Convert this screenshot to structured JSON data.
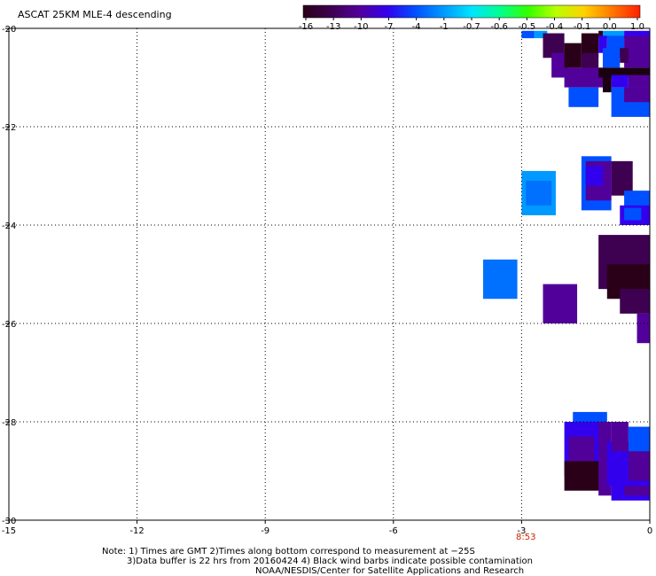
{
  "title": "ASCAT 25KM MLE-4 descending",
  "colorbar": {
    "labels": [
      "-16",
      "-13",
      "-10",
      "-7",
      "-4",
      "-1",
      "-0.7",
      "-0.6",
      "-0.5",
      "-0.4",
      "-0.1",
      "0.0",
      "1.0"
    ],
    "colors": [
      "#2a0018",
      "#3e0050",
      "#52009a",
      "#3300ee",
      "#0050ff",
      "#0099ff",
      "#00e4ff",
      "#00ff90",
      "#33ff00",
      "#b8ff00",
      "#ffd200",
      "#ff7800",
      "#ff2000"
    ]
  },
  "chart_data": {
    "type": "heatmap",
    "title": "ASCAT 25KM MLE-4 descending",
    "xlim": [
      -15,
      0
    ],
    "ylim": [
      -30,
      -20
    ],
    "x_ticks": [
      -15,
      -12,
      -9,
      -6,
      -3,
      0
    ],
    "y_ticks": [
      -20,
      -22,
      -24,
      -26,
      -28,
      -30
    ],
    "x_tick_labels": [
      "-15",
      "-12",
      "-9",
      "-6",
      "-3",
      "0"
    ],
    "y_tick_labels": [
      "-20",
      "-22",
      "-24",
      "-26",
      "-28",
      "-30"
    ],
    "grid": true,
    "cells": [
      {
        "x0": -3.0,
        "x1": -2.7,
        "y0": -20.2,
        "y1": -20.05,
        "c": "#0050ff"
      },
      {
        "x0": -2.7,
        "x1": -2.4,
        "y0": -20.2,
        "y1": -20.05,
        "c": "#0099ff"
      },
      {
        "x0": -2.5,
        "x1": -2.0,
        "y0": -20.6,
        "y1": -20.1,
        "c": "#3e0050"
      },
      {
        "x0": -2.3,
        "x1": -1.9,
        "y0": -21.0,
        "y1": -20.5,
        "c": "#52009a"
      },
      {
        "x0": -2.0,
        "x1": -1.6,
        "y0": -20.8,
        "y1": -20.3,
        "c": "#2a0018"
      },
      {
        "x0": -1.6,
        "x1": -1.2,
        "y0": -20.6,
        "y1": -20.1,
        "c": "#2a0018"
      },
      {
        "x0": -1.2,
        "x1": -1.1,
        "y0": -20.2,
        "y1": -20.05,
        "c": "#2a0018"
      },
      {
        "x0": -1.1,
        "x1": -0.6,
        "y0": -20.2,
        "y1": -20.05,
        "c": "#0099ff"
      },
      {
        "x0": -0.6,
        "x1": 0.0,
        "y0": -20.2,
        "y1": -20.05,
        "c": "#3300ee"
      },
      {
        "x0": -1.6,
        "x1": -1.2,
        "y0": -20.9,
        "y1": -20.5,
        "c": "#3e0050"
      },
      {
        "x0": -1.2,
        "x1": -1.0,
        "y0": -20.5,
        "y1": -20.15,
        "c": "#3300ee"
      },
      {
        "x0": -1.0,
        "x1": -0.6,
        "y0": -20.6,
        "y1": -20.15,
        "c": "#0050ff"
      },
      {
        "x0": -0.6,
        "x1": 0.0,
        "y0": -20.8,
        "y1": -20.15,
        "c": "#52009a"
      },
      {
        "x0": -1.1,
        "x1": -0.7,
        "y0": -20.8,
        "y1": -20.4,
        "c": "#0050ff"
      },
      {
        "x0": -0.7,
        "x1": -0.5,
        "y0": -20.7,
        "y1": -20.4,
        "c": "#3e0050"
      },
      {
        "x0": -2.0,
        "x1": -1.0,
        "y0": -21.2,
        "y1": -20.8,
        "c": "#52009a"
      },
      {
        "x0": -1.2,
        "x1": 0.0,
        "y0": -21.0,
        "y1": -20.8,
        "c": "#1a0010"
      },
      {
        "x0": -1.1,
        "x1": -0.9,
        "y0": -21.3,
        "y1": -20.95,
        "c": "#1a0010"
      },
      {
        "x0": -0.9,
        "x1": -0.5,
        "y0": -21.2,
        "y1": -20.95,
        "c": "#3300ee"
      },
      {
        "x0": -0.5,
        "x1": 0.0,
        "y0": -21.3,
        "y1": -20.95,
        "c": "#52009a"
      },
      {
        "x0": -1.9,
        "x1": -1.2,
        "y0": -21.6,
        "y1": -21.2,
        "c": "#0050ff"
      },
      {
        "x0": -0.9,
        "x1": 0.0,
        "y0": -21.8,
        "y1": -21.2,
        "c": "#0050ff"
      },
      {
        "x0": -0.6,
        "x1": 0.0,
        "y0": -21.5,
        "y1": -21.2,
        "c": "#52009a"
      },
      {
        "x0": -3.0,
        "x1": -2.2,
        "y0": -23.8,
        "y1": -22.9,
        "c": "#0099ff"
      },
      {
        "x0": -2.9,
        "x1": -2.3,
        "y0": -23.6,
        "y1": -23.1,
        "c": "#0070ff"
      },
      {
        "x0": -1.6,
        "x1": -0.9,
        "y0": -23.7,
        "y1": -22.6,
        "c": "#0050ff"
      },
      {
        "x0": -1.5,
        "x1": -0.9,
        "y0": -23.5,
        "y1": -22.7,
        "c": "#52009a"
      },
      {
        "x0": -1.5,
        "x1": -1.1,
        "y0": -23.2,
        "y1": -22.8,
        "c": "#3300ee"
      },
      {
        "x0": -0.9,
        "x1": -0.4,
        "y0": -23.4,
        "y1": -22.7,
        "c": "#3e0050"
      },
      {
        "x0": -0.6,
        "x1": 0.0,
        "y0": -23.7,
        "y1": -23.3,
        "c": "#0050ff"
      },
      {
        "x0": -0.7,
        "x1": 0.0,
        "y0": -24.0,
        "y1": -23.6,
        "c": "#3300ee"
      },
      {
        "x0": -0.6,
        "x1": -0.2,
        "y0": -23.9,
        "y1": -23.65,
        "c": "#0050ff"
      },
      {
        "x0": -1.2,
        "x1": 0.0,
        "y0": -25.3,
        "y1": -24.2,
        "c": "#3e0050"
      },
      {
        "x0": -1.0,
        "x1": 0.0,
        "y0": -25.5,
        "y1": -24.8,
        "c": "#2a0018"
      },
      {
        "x0": -0.7,
        "x1": 0.0,
        "y0": -25.8,
        "y1": -25.3,
        "c": "#3e0050"
      },
      {
        "x0": -0.3,
        "x1": 0.0,
        "y0": -26.4,
        "y1": -25.8,
        "c": "#52009a"
      },
      {
        "x0": -3.9,
        "x1": -3.1,
        "y0": -25.5,
        "y1": -24.7,
        "c": "#0070ff"
      },
      {
        "x0": -2.5,
        "x1": -1.7,
        "y0": -26.0,
        "y1": -25.2,
        "c": "#52009a"
      },
      {
        "x0": -1.8,
        "x1": -1.0,
        "y0": -28.4,
        "y1": -27.8,
        "c": "#0050ff"
      },
      {
        "x0": -2.0,
        "x1": -1.0,
        "y0": -29.1,
        "y1": -28.0,
        "c": "#3300ee"
      },
      {
        "x0": -1.9,
        "x1": -1.3,
        "y0": -28.9,
        "y1": -28.3,
        "c": "#52009a"
      },
      {
        "x0": -2.0,
        "x1": -1.1,
        "y0": -29.4,
        "y1": -28.8,
        "c": "#2a0018"
      },
      {
        "x0": -1.2,
        "x1": -0.9,
        "y0": -29.5,
        "y1": -28.0,
        "c": "#52009a"
      },
      {
        "x0": -1.0,
        "x1": -0.3,
        "y0": -29.3,
        "y1": -28.4,
        "c": "#3300ee"
      },
      {
        "x0": -0.9,
        "x1": -0.5,
        "y0": -28.6,
        "y1": -28.0,
        "c": "#52009a"
      },
      {
        "x0": -0.5,
        "x1": 0.0,
        "y0": -28.7,
        "y1": -28.1,
        "c": "#0050ff"
      },
      {
        "x0": -0.5,
        "x1": 0.0,
        "y0": -29.3,
        "y1": -28.6,
        "c": "#52009a"
      },
      {
        "x0": -0.9,
        "x1": 0.0,
        "y0": -29.6,
        "y1": -29.2,
        "c": "#3300ee"
      },
      {
        "x0": -0.6,
        "x1": 0.0,
        "y0": -29.5,
        "y1": -29.3,
        "c": "#52009a"
      }
    ],
    "time_labels": [
      {
        "x": -2.9,
        "text": "8:53"
      }
    ]
  },
  "notes": [
    "Note: 1) Times are GMT 2)Times along bottom correspond to measurement at −25S",
    "3)Data buffer is 22 hrs from 20160424 4) Black wind barbs indicate possible contamination",
    "NOAA/NESDIS/Center for Satellite Applications and Research"
  ]
}
